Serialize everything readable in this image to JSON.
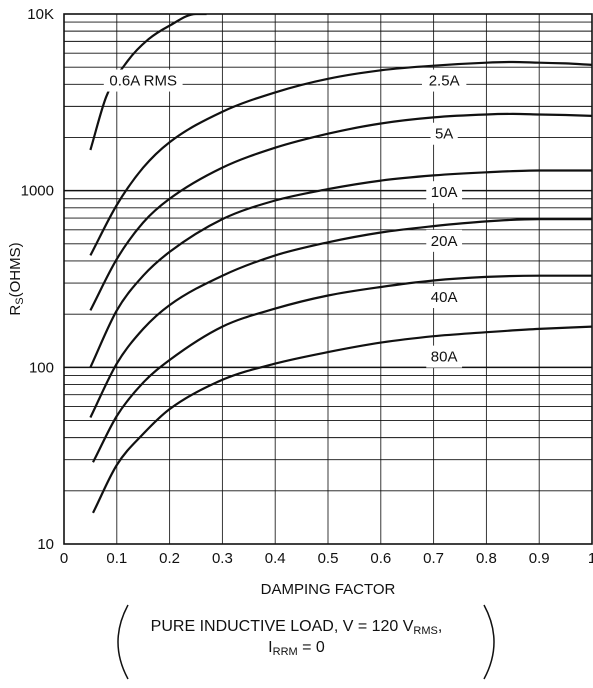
{
  "chart_data": {
    "type": "line",
    "xlabel": "DAMPING FACTOR",
    "ylabel": "RS(OHMS)",
    "ylabel_main": "R",
    "ylabel_sub": "S",
    "ylabel_rest": "(OHMS)",
    "y_scale": "log",
    "xlim": [
      0,
      1
    ],
    "ylim": [
      10,
      10000
    ],
    "grid": true,
    "x_ticks": [
      "0",
      "0.1",
      "0.2",
      "0.3",
      "0.4",
      "0.5",
      "0.6",
      "0.7",
      "0.8",
      "0.9",
      "1"
    ],
    "y_ticks": [
      "10",
      "100",
      "1000",
      "10K"
    ],
    "series": [
      {
        "name": "0.6A RMS",
        "x": [
          0.05,
          0.08,
          0.12,
          0.16,
          0.2,
          0.25,
          0.27
        ],
        "y": [
          1700,
          3400,
          5400,
          7200,
          8600,
          10000,
          10000
        ]
      },
      {
        "name": "2.5A",
        "x": [
          0.05,
          0.1,
          0.15,
          0.2,
          0.3,
          0.4,
          0.5,
          0.6,
          0.7,
          0.8,
          0.85,
          0.9,
          0.95,
          1.0
        ],
        "y": [
          430,
          830,
          1350,
          1880,
          2800,
          3600,
          4300,
          4800,
          5100,
          5300,
          5350,
          5300,
          5250,
          5150
        ]
      },
      {
        "name": "5A",
        "x": [
          0.05,
          0.1,
          0.15,
          0.2,
          0.3,
          0.4,
          0.5,
          0.6,
          0.7,
          0.8,
          0.85,
          0.9,
          0.95,
          1.0
        ],
        "y": [
          210,
          410,
          660,
          900,
          1350,
          1750,
          2100,
          2400,
          2600,
          2700,
          2720,
          2700,
          2680,
          2650
        ]
      },
      {
        "name": "10A",
        "x": [
          0.05,
          0.1,
          0.15,
          0.2,
          0.3,
          0.4,
          0.5,
          0.6,
          0.7,
          0.8,
          0.9,
          1.0
        ],
        "y": [
          100,
          210,
          330,
          450,
          690,
          880,
          1020,
          1140,
          1220,
          1270,
          1300,
          1300
        ]
      },
      {
        "name": "20A",
        "x": [
          0.05,
          0.1,
          0.15,
          0.2,
          0.3,
          0.4,
          0.5,
          0.6,
          0.7,
          0.8,
          0.9,
          1.0
        ],
        "y": [
          52,
          105,
          165,
          225,
          330,
          430,
          510,
          580,
          630,
          670,
          690,
          690
        ]
      },
      {
        "name": "40A",
        "x": [
          0.055,
          0.1,
          0.15,
          0.2,
          0.3,
          0.4,
          0.5,
          0.6,
          0.7,
          0.8,
          0.9,
          1.0
        ],
        "y": [
          29,
          53,
          82,
          110,
          170,
          215,
          255,
          285,
          310,
          325,
          330,
          330
        ]
      },
      {
        "name": "80A",
        "x": [
          0.055,
          0.1,
          0.15,
          0.2,
          0.3,
          0.4,
          0.5,
          0.6,
          0.7,
          0.8,
          0.9,
          1.0
        ],
        "y": [
          15,
          28,
          42,
          58,
          85,
          105,
          122,
          138,
          150,
          158,
          165,
          170
        ]
      }
    ]
  },
  "caption": {
    "line1_prefix": "PURE INDUCTIVE LOAD, V = 120 V",
    "line1_sub": "RMS",
    "line1_suffix": ",",
    "line2_prefix": "I",
    "line2_sub": "RRM",
    "line2_suffix": " = 0"
  }
}
